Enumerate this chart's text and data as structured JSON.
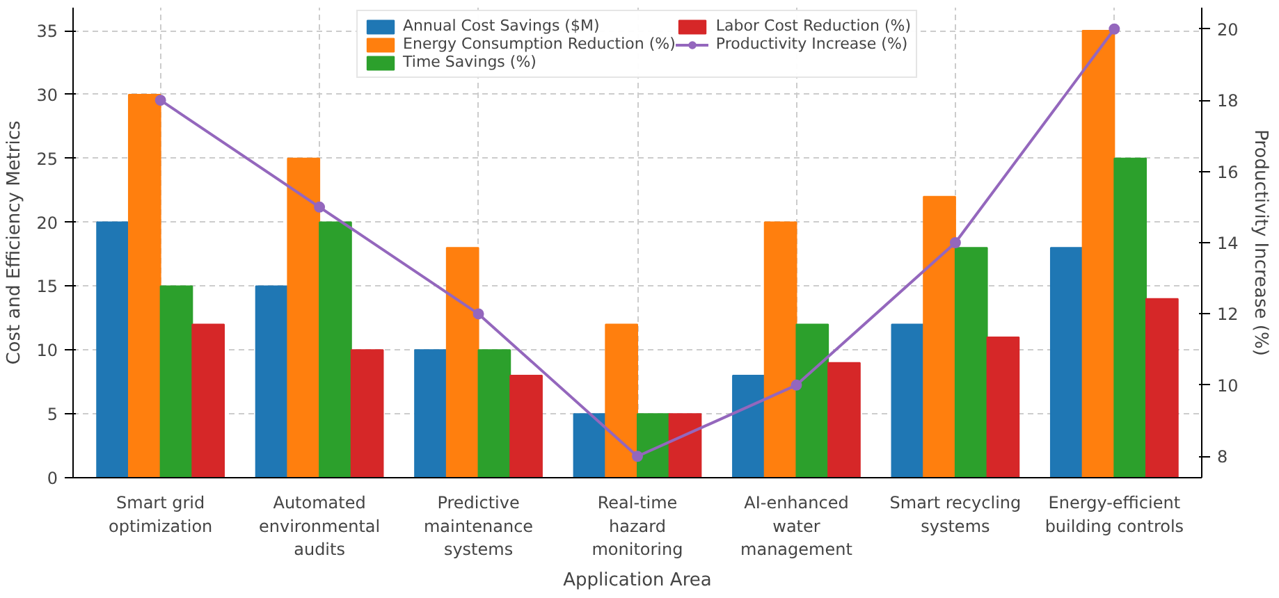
{
  "chart_data": {
    "type": "bar",
    "xlabel": "Application Area",
    "ylabel": "Cost and Efficiency Metrics",
    "y2label": "Productivity Increase (%)",
    "categories": [
      "Smart grid\noptimization",
      "Automated\nenvironmental\naudits",
      "Predictive\nmaintenance\nsystems",
      "Real-time\nhazard\nmonitoring",
      "AI-enhanced\nwater\nmanagement",
      "Smart recycling\nsystems",
      "Energy-efficient\nbuilding controls"
    ],
    "series": [
      {
        "name": "Annual Cost Savings ($M)",
        "color": "#1f77b4",
        "values": [
          20,
          15,
          10,
          5,
          8,
          12,
          18
        ]
      },
      {
        "name": "Energy Consumption Reduction (%)",
        "color": "#ff7f0e",
        "values": [
          30,
          25,
          18,
          12,
          20,
          22,
          35
        ]
      },
      {
        "name": "Time Savings (%)",
        "color": "#2ca02c",
        "values": [
          15,
          20,
          10,
          5,
          12,
          18,
          25
        ]
      },
      {
        "name": "Labor Cost Reduction (%)",
        "color": "#d62728",
        "values": [
          12,
          10,
          8,
          5,
          9,
          11,
          14
        ]
      },
      {
        "name": "Productivity Increase (%)",
        "color": "#9467bd",
        "type": "line",
        "axis": "y2",
        "marker": "circle",
        "values": [
          18,
          15,
          12,
          8,
          10,
          14,
          20
        ]
      }
    ],
    "ylim": [
      0,
      36.8
    ],
    "yticks": [
      0,
      5,
      10,
      15,
      20,
      25,
      30,
      35
    ],
    "y2lim": [
      7.4,
      20.6
    ],
    "y2ticks": [
      8,
      10,
      12,
      14,
      16,
      18,
      20
    ],
    "grid": true,
    "legend": "top"
  }
}
